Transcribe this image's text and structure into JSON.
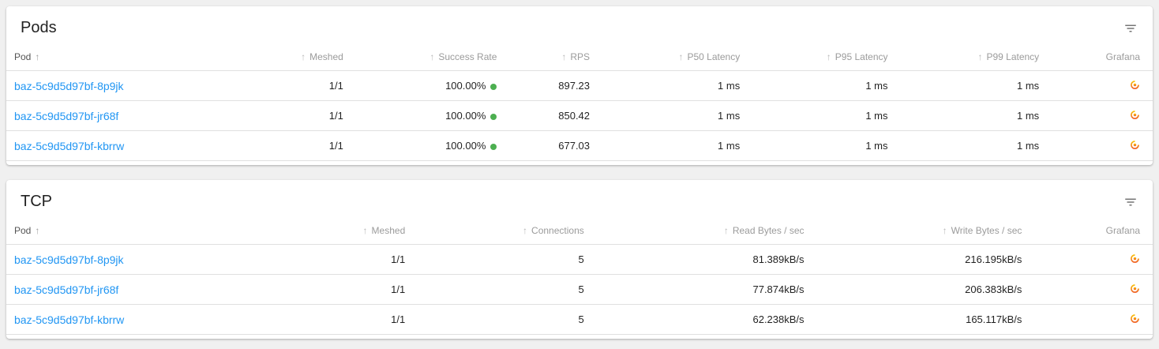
{
  "colors": {
    "page_background": "#f0f0f0",
    "card_background": "#ffffff",
    "link_blue": "#2196f3",
    "success_green": "#4caf50",
    "grafana_orange_dark": "#f05a28",
    "grafana_orange_light": "#fbca0a",
    "header_grey": "#9b9b9b",
    "row_border": "#e0e0e0"
  },
  "icons": {
    "filter": "filter-list-icon",
    "grafana": "grafana-icon",
    "sort_asc": "↑"
  },
  "cards": [
    {
      "title": "Pods",
      "columns": [
        {
          "label": "Pod",
          "align": "left",
          "sort": "active",
          "width": "20%"
        },
        {
          "label": "Meshed",
          "align": "right",
          "sort": "inactive",
          "width": "10.5%"
        },
        {
          "label": "Success Rate",
          "align": "right",
          "sort": "inactive",
          "width": "13.4%"
        },
        {
          "label": "RPS",
          "align": "right",
          "sort": "inactive",
          "width": "8.1%"
        },
        {
          "label": "P50 Latency",
          "align": "right",
          "sort": "inactive",
          "width": "13.1%"
        },
        {
          "label": "P95 Latency",
          "align": "right",
          "sort": "inactive",
          "width": "12.9%"
        },
        {
          "label": "P99 Latency",
          "align": "right",
          "sort": "inactive",
          "width": "13.2%"
        },
        {
          "label": "Grafana",
          "align": "right",
          "sort": "none",
          "width": "8.8%"
        }
      ],
      "rows": [
        [
          {
            "type": "link",
            "text": "baz-5c9d5d97bf-8p9jk"
          },
          {
            "type": "text",
            "text": "1/1"
          },
          {
            "type": "success",
            "text": "100.00%"
          },
          {
            "type": "text",
            "text": "897.23"
          },
          {
            "type": "text",
            "text": "1 ms"
          },
          {
            "type": "text",
            "text": "1 ms"
          },
          {
            "type": "text",
            "text": "1 ms"
          },
          {
            "type": "grafana"
          }
        ],
        [
          {
            "type": "link",
            "text": "baz-5c9d5d97bf-jr68f"
          },
          {
            "type": "text",
            "text": "1/1"
          },
          {
            "type": "success",
            "text": "100.00%"
          },
          {
            "type": "text",
            "text": "850.42"
          },
          {
            "type": "text",
            "text": "1 ms"
          },
          {
            "type": "text",
            "text": "1 ms"
          },
          {
            "type": "text",
            "text": "1 ms"
          },
          {
            "type": "grafana"
          }
        ],
        [
          {
            "type": "link",
            "text": "baz-5c9d5d97bf-kbrrw"
          },
          {
            "type": "text",
            "text": "1/1"
          },
          {
            "type": "success",
            "text": "100.00%"
          },
          {
            "type": "text",
            "text": "677.03"
          },
          {
            "type": "text",
            "text": "1 ms"
          },
          {
            "type": "text",
            "text": "1 ms"
          },
          {
            "type": "text",
            "text": "1 ms"
          },
          {
            "type": "grafana"
          }
        ]
      ]
    },
    {
      "title": "TCP",
      "columns": [
        {
          "label": "Pod",
          "align": "left",
          "sort": "active",
          "width": "21%"
        },
        {
          "label": "Meshed",
          "align": "right",
          "sort": "inactive",
          "width": "14.9%"
        },
        {
          "label": "Connections",
          "align": "right",
          "sort": "inactive",
          "width": "15.6%"
        },
        {
          "label": "Read Bytes / sec",
          "align": "right",
          "sort": "inactive",
          "width": "19.2%"
        },
        {
          "label": "Write Bytes / sec",
          "align": "right",
          "sort": "inactive",
          "width": "19%"
        },
        {
          "label": "Grafana",
          "align": "right",
          "sort": "none",
          "width": "10.3%"
        }
      ],
      "rows": [
        [
          {
            "type": "link",
            "text": "baz-5c9d5d97bf-8p9jk"
          },
          {
            "type": "text",
            "text": "1/1"
          },
          {
            "type": "text",
            "text": "5"
          },
          {
            "type": "text",
            "text": "81.389kB/s"
          },
          {
            "type": "text",
            "text": "216.195kB/s"
          },
          {
            "type": "grafana"
          }
        ],
        [
          {
            "type": "link",
            "text": "baz-5c9d5d97bf-jr68f"
          },
          {
            "type": "text",
            "text": "1/1"
          },
          {
            "type": "text",
            "text": "5"
          },
          {
            "type": "text",
            "text": "77.874kB/s"
          },
          {
            "type": "text",
            "text": "206.383kB/s"
          },
          {
            "type": "grafana"
          }
        ],
        [
          {
            "type": "link",
            "text": "baz-5c9d5d97bf-kbrrw"
          },
          {
            "type": "text",
            "text": "1/1"
          },
          {
            "type": "text",
            "text": "5"
          },
          {
            "type": "text",
            "text": "62.238kB/s"
          },
          {
            "type": "text",
            "text": "165.117kB/s"
          },
          {
            "type": "grafana"
          }
        ]
      ]
    }
  ]
}
